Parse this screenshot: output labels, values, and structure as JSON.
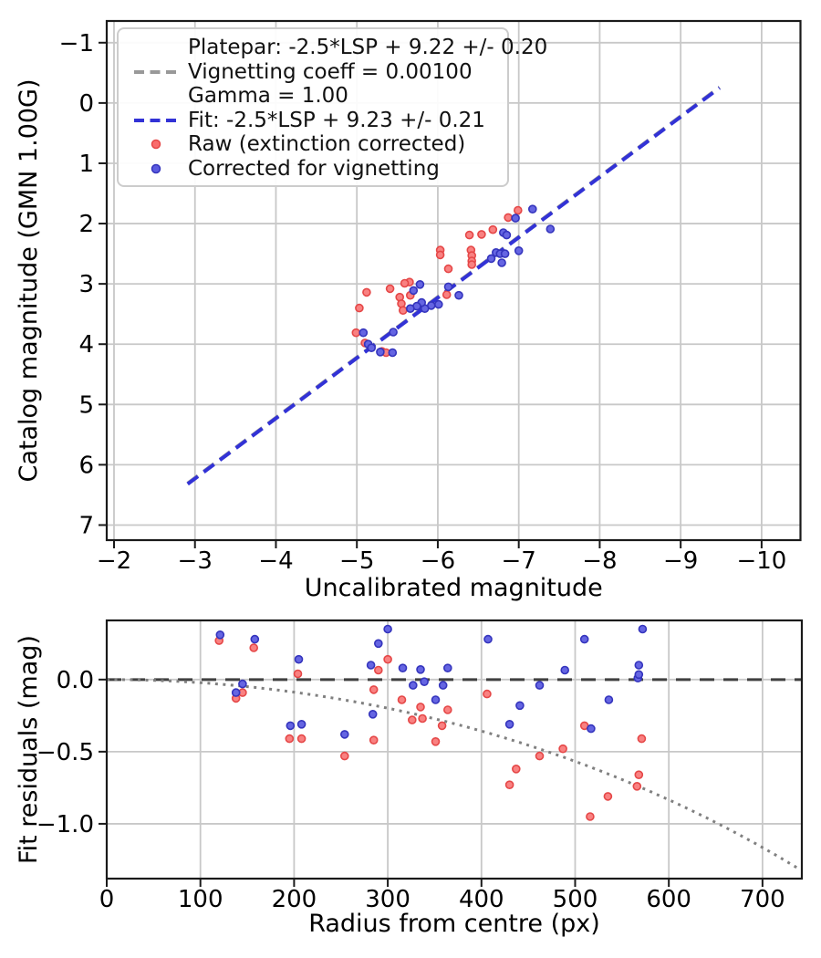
{
  "figure": {
    "background": "#ffffff",
    "text_color": "#000000",
    "grid_color": "#c8c8c8",
    "spine_color": "#1a1a1a"
  },
  "chart_data": [
    {
      "id": "photometry-fit",
      "type": "scatter",
      "title": "",
      "xlabel": "Uncalibrated magnitude",
      "ylabel": "Catalog magnitude (GMN 1.00G)",
      "xlim": [
        -1.91,
        -10.48
      ],
      "ylim": [
        7.25,
        -1.36
      ],
      "grid": true,
      "legend_position": "upper left",
      "xticks": [
        -2,
        -3,
        -4,
        -5,
        -6,
        -7,
        -8,
        -9,
        -10
      ],
      "xtick_labels": [
        "−2",
        "−3",
        "−4",
        "−5",
        "−6",
        "−7",
        "−8",
        "−9",
        "−10"
      ],
      "yticks": [
        -1,
        0,
        1,
        2,
        3,
        4,
        5,
        6,
        7
      ],
      "ytick_labels": [
        "−1",
        "0",
        "1",
        "2",
        "3",
        "4",
        "5",
        "6",
        "7"
      ],
      "lines": [
        {
          "name": "platepar-line",
          "label": "Platepar: -2.5*LSP + 9.22 +/- 0.20\nVignetting coeff = 0.00100\nGamma = 1.00",
          "style": "dashed",
          "color": "#999999",
          "slope": 1.0,
          "intercept": 9.22
        },
        {
          "name": "fit-line",
          "label": "Fit: -2.5*LSP + 9.23 +/- 0.21",
          "style": "dashed",
          "color": "#3232d6",
          "slope": 1.0,
          "intercept": 9.23
        }
      ],
      "series": [
        {
          "name": "Raw (extinction corrected)",
          "marker": "dot",
          "fill": "#f98181",
          "edge": "#e54747",
          "points": [
            [
              -6.99,
              1.78
            ],
            [
              -6.87,
              1.9
            ],
            [
              -6.68,
              2.1
            ],
            [
              -6.54,
              2.18
            ],
            [
              -6.39,
              2.19
            ],
            [
              -6.41,
              2.44
            ],
            [
              -6.42,
              2.53
            ],
            [
              -6.42,
              2.62
            ],
            [
              -6.42,
              2.68
            ],
            [
              -6.03,
              2.44
            ],
            [
              -6.03,
              2.52
            ],
            [
              -6.13,
              2.75
            ],
            [
              -5.65,
              2.97
            ],
            [
              -5.59,
              2.99
            ],
            [
              -5.66,
              3.19
            ],
            [
              -6.11,
              3.18
            ],
            [
              -5.41,
              3.08
            ],
            [
              -5.53,
              3.22
            ],
            [
              -5.55,
              3.33
            ],
            [
              -5.57,
              3.44
            ],
            [
              -5.12,
              3.14
            ],
            [
              -5.03,
              3.4
            ],
            [
              -4.99,
              3.81
            ],
            [
              -5.1,
              3.98
            ],
            [
              -5.31,
              4.12
            ],
            [
              -5.36,
              4.14
            ]
          ]
        },
        {
          "name": "Corrected for vignetting",
          "marker": "dot",
          "fill": "#6565e2",
          "edge": "#3434bd",
          "points": [
            [
              -7.17,
              1.76
            ],
            [
              -6.96,
              1.91
            ],
            [
              -7.39,
              2.09
            ],
            [
              -6.81,
              2.15
            ],
            [
              -6.85,
              2.19
            ],
            [
              -7.0,
              2.45
            ],
            [
              -6.72,
              2.48
            ],
            [
              -6.77,
              2.5
            ],
            [
              -6.83,
              2.5
            ],
            [
              -6.66,
              2.58
            ],
            [
              -6.79,
              2.65
            ],
            [
              -6.26,
              3.19
            ],
            [
              -6.13,
              3.05
            ],
            [
              -6.01,
              3.34
            ],
            [
              -5.92,
              3.36
            ],
            [
              -5.84,
              3.41
            ],
            [
              -5.8,
              3.31
            ],
            [
              -5.74,
              3.37
            ],
            [
              -5.7,
              3.11
            ],
            [
              -5.78,
              3.01
            ],
            [
              -5.66,
              3.41
            ],
            [
              -5.45,
              3.8
            ],
            [
              -5.08,
              3.81
            ],
            [
              -5.14,
              4.0
            ],
            [
              -5.18,
              4.06
            ],
            [
              -5.29,
              4.13
            ],
            [
              -5.44,
              4.14
            ]
          ]
        }
      ],
      "legend": {
        "entries": [
          {
            "sample": "dashed-gray",
            "color": "#999999",
            "lines": [
              "Platepar: -2.5*LSP + 9.22 +/- 0.20",
              "Vignetting coeff = 0.00100",
              "Gamma = 1.00"
            ]
          },
          {
            "sample": "dashed-blue",
            "color": "#3232d6",
            "lines": [
              "Fit: -2.5*LSP + 9.23 +/- 0.21"
            ]
          },
          {
            "sample": "dot-red",
            "color": "#f96c6c",
            "edge": "#e54747",
            "lines": [
              "Raw (extinction corrected)"
            ]
          },
          {
            "sample": "dot-blue",
            "color": "#5b5be0",
            "edge": "#3434bd",
            "lines": [
              "Corrected for vignetting"
            ]
          }
        ]
      }
    },
    {
      "id": "fit-residuals",
      "type": "scatter",
      "title": "",
      "xlabel": "Radius from centre (px)",
      "ylabel": "Fit residuals (mag)",
      "xlim": [
        0,
        742
      ],
      "ylim": [
        -1.38,
        0.41
      ],
      "grid": true,
      "xticks": [
        0,
        100,
        200,
        300,
        400,
        500,
        600,
        700
      ],
      "xtick_labels": [
        "0",
        "100",
        "200",
        "300",
        "400",
        "500",
        "600",
        "700"
      ],
      "yticks": [
        0.0,
        -0.5,
        -1.0
      ],
      "ytick_labels": [
        "0.0",
        "−0.5",
        "−1.0"
      ],
      "zero_line": {
        "name": "zero-residual-line",
        "style": "dashed",
        "color": "#404040",
        "y": 0
      },
      "vignetting_curve": {
        "name": "vignetting-model-curve",
        "style": "dotted",
        "color": "#808080",
        "coeff": 0.001,
        "formula": "residual = 10*log10(cos(coeff*r))",
        "x_range": [
          0,
          742
        ]
      },
      "series": [
        {
          "name": "Raw (extinction corrected)",
          "marker": "dot",
          "fill": "#f98181",
          "edge": "#e54747",
          "points": [
            [
              120,
              0.27
            ],
            [
              157,
              0.22
            ],
            [
              138,
              -0.13
            ],
            [
              145,
              -0.09
            ],
            [
              204,
              0.04
            ],
            [
              195,
              -0.41
            ],
            [
              208,
              -0.41
            ],
            [
              254,
              -0.53
            ],
            [
              285,
              -0.07
            ],
            [
              290,
              0.065
            ],
            [
              300,
              0.14
            ],
            [
              285,
              -0.42
            ],
            [
              315,
              -0.14
            ],
            [
              326,
              -0.28
            ],
            [
              335,
              -0.19
            ],
            [
              337,
              -0.27
            ],
            [
              351,
              -0.43
            ],
            [
              358,
              -0.32
            ],
            [
              364,
              -0.21
            ],
            [
              406,
              -0.1
            ],
            [
              430,
              -0.73
            ],
            [
              437,
              -0.62
            ],
            [
              462,
              -0.53
            ],
            [
              487,
              -0.48
            ],
            [
              510,
              -0.32
            ],
            [
              516,
              -0.95
            ],
            [
              535,
              -0.81
            ],
            [
              566,
              -0.74
            ],
            [
              568,
              -0.66
            ],
            [
              571,
              -0.41
            ]
          ]
        },
        {
          "name": "Corrected for vignetting",
          "marker": "dot",
          "fill": "#6565e2",
          "edge": "#3434bd",
          "points": [
            [
              121,
              0.31
            ],
            [
              158,
              0.28
            ],
            [
              138,
              -0.09
            ],
            [
              145,
              -0.03
            ],
            [
              205,
              0.14
            ],
            [
              196,
              -0.32
            ],
            [
              208,
              -0.31
            ],
            [
              254,
              -0.38
            ],
            [
              282,
              0.1
            ],
            [
              284,
              -0.24
            ],
            [
              290,
              0.25
            ],
            [
              300,
              0.35
            ],
            [
              316,
              0.08
            ],
            [
              327,
              -0.04
            ],
            [
              335,
              0.07
            ],
            [
              339,
              -0.015
            ],
            [
              351,
              -0.14
            ],
            [
              359,
              -0.04
            ],
            [
              364,
              0.08
            ],
            [
              407,
              0.28
            ],
            [
              430,
              -0.31
            ],
            [
              441,
              -0.18
            ],
            [
              462,
              -0.04
            ],
            [
              489,
              0.065
            ],
            [
              510,
              0.28
            ],
            [
              517,
              -0.34
            ],
            [
              536,
              -0.14
            ],
            [
              567,
              0.01
            ],
            [
              568,
              0.035
            ],
            [
              568,
              0.1
            ],
            [
              572,
              0.35
            ]
          ]
        }
      ]
    }
  ]
}
